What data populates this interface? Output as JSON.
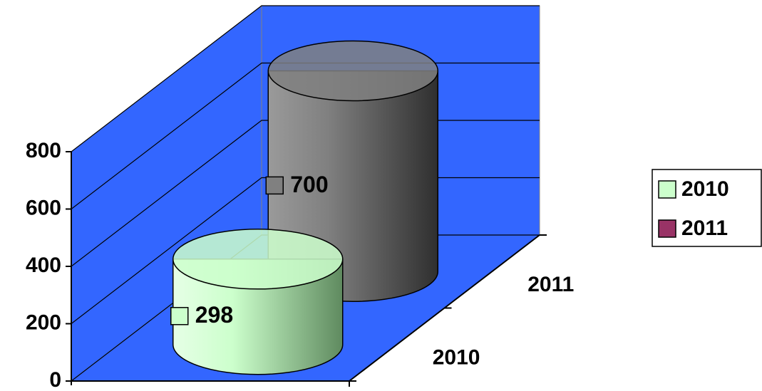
{
  "chart_data": {
    "type": "cylinder3d",
    "series": [
      {
        "name": "2010",
        "color": "#ccffcc",
        "bar_color": "#ccffcc",
        "values": [
          298
        ]
      },
      {
        "name": "2011",
        "color": "#993366",
        "bar_color": "#808080",
        "values": [
          700
        ]
      }
    ],
    "depth_categories": [
      "2010",
      "2011"
    ],
    "ylim": [
      0,
      800
    ],
    "yticks": [
      0,
      200,
      400,
      600,
      800
    ],
    "grid": true,
    "wall_color": "#3366ff",
    "legend": "right"
  }
}
